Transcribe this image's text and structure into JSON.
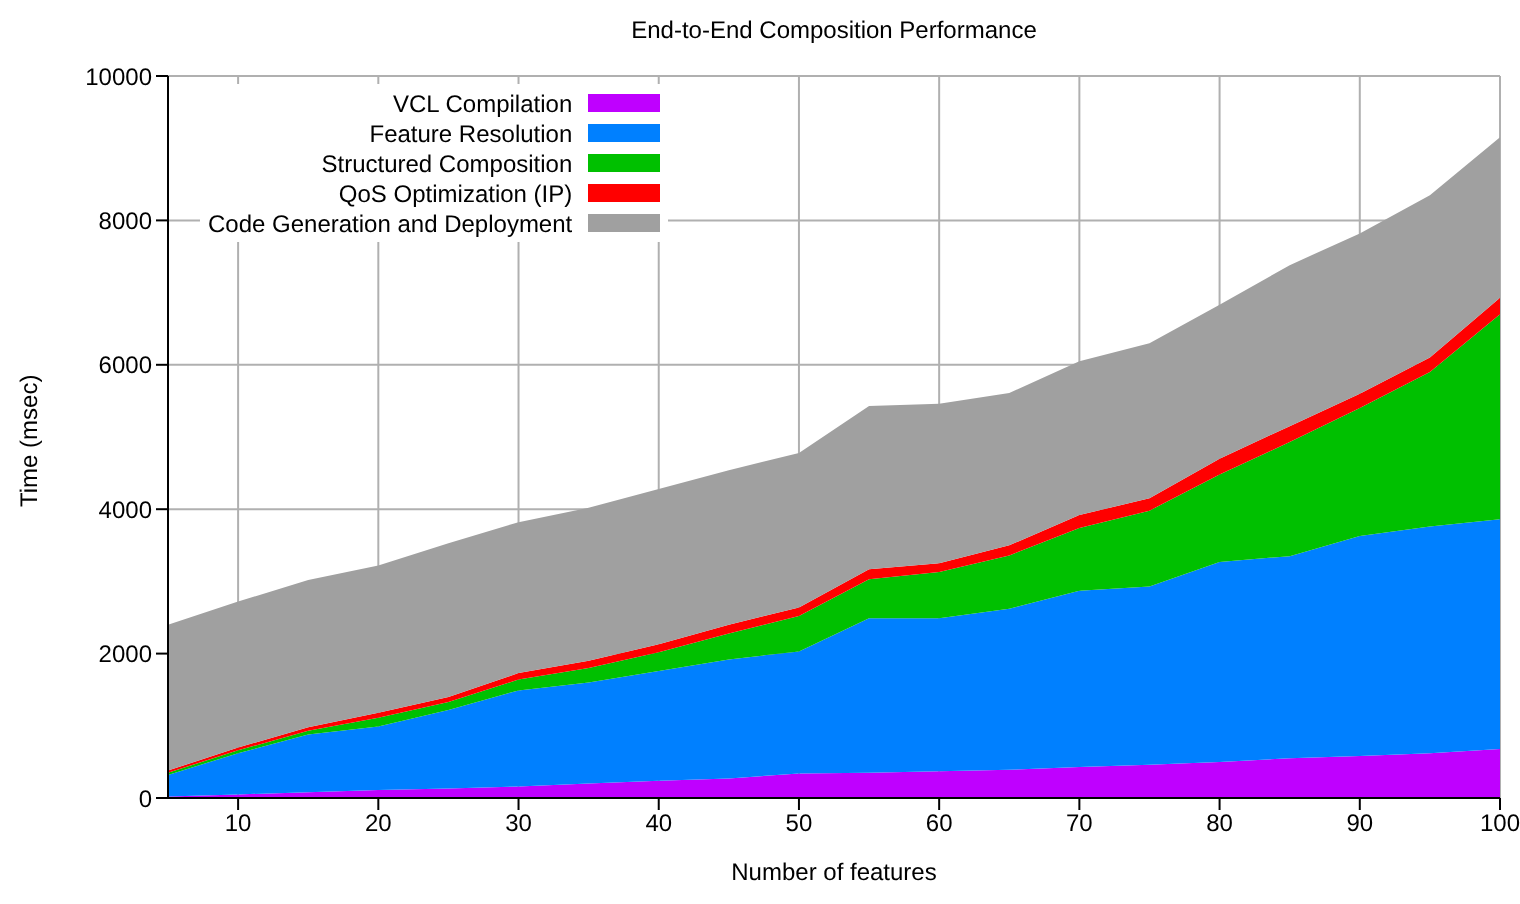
{
  "chart_data": {
    "type": "area",
    "stacked": true,
    "title": "End-to-End Composition Performance",
    "xlabel": "Number of features",
    "ylabel": "Time (msec)",
    "x": [
      5,
      10,
      15,
      20,
      25,
      30,
      35,
      40,
      45,
      50,
      55,
      60,
      65,
      70,
      75,
      80,
      85,
      90,
      95,
      100
    ],
    "xlim": [
      5,
      100
    ],
    "xticks": [
      10,
      20,
      30,
      40,
      50,
      60,
      70,
      80,
      90,
      100
    ],
    "ylim": [
      0,
      10000
    ],
    "yticks": [
      0,
      2000,
      4000,
      6000,
      8000,
      10000
    ],
    "grid": true,
    "legend": "top left",
    "series": [
      {
        "name": "VCL Compilation",
        "color": "#bf00ff",
        "values": [
          20,
          50,
          80,
          110,
          130,
          160,
          200,
          240,
          270,
          340,
          350,
          370,
          390,
          430,
          460,
          500,
          550,
          580,
          620,
          680
        ]
      },
      {
        "name": "Feature Resolution",
        "color": "#0080ff",
        "values": [
          300,
          570,
          800,
          880,
          1090,
          1330,
          1400,
          1520,
          1650,
          1690,
          2140,
          2120,
          2230,
          2440,
          2470,
          2770,
          2800,
          3050,
          3140,
          3180
        ]
      },
      {
        "name": "Structured Composition",
        "color": "#00c000",
        "values": [
          30,
          40,
          50,
          120,
          110,
          150,
          200,
          260,
          360,
          490,
          540,
          640,
          740,
          870,
          1050,
          1210,
          1580,
          1770,
          2140,
          2840
        ]
      },
      {
        "name": "QoS Optimization (IP)",
        "color": "#ff0000",
        "values": [
          30,
          40,
          50,
          70,
          70,
          90,
          100,
          110,
          120,
          120,
          140,
          120,
          140,
          180,
          170,
          220,
          220,
          200,
          200,
          230
        ]
      },
      {
        "name": "Code Generation and Deployment",
        "color": "#a0a0a0",
        "values": [
          2020,
          2020,
          2040,
          2040,
          2130,
          2090,
          2120,
          2150,
          2140,
          2140,
          2260,
          2210,
          2110,
          2130,
          2150,
          2130,
          2230,
          2220,
          2250,
          2220
        ]
      }
    ]
  }
}
